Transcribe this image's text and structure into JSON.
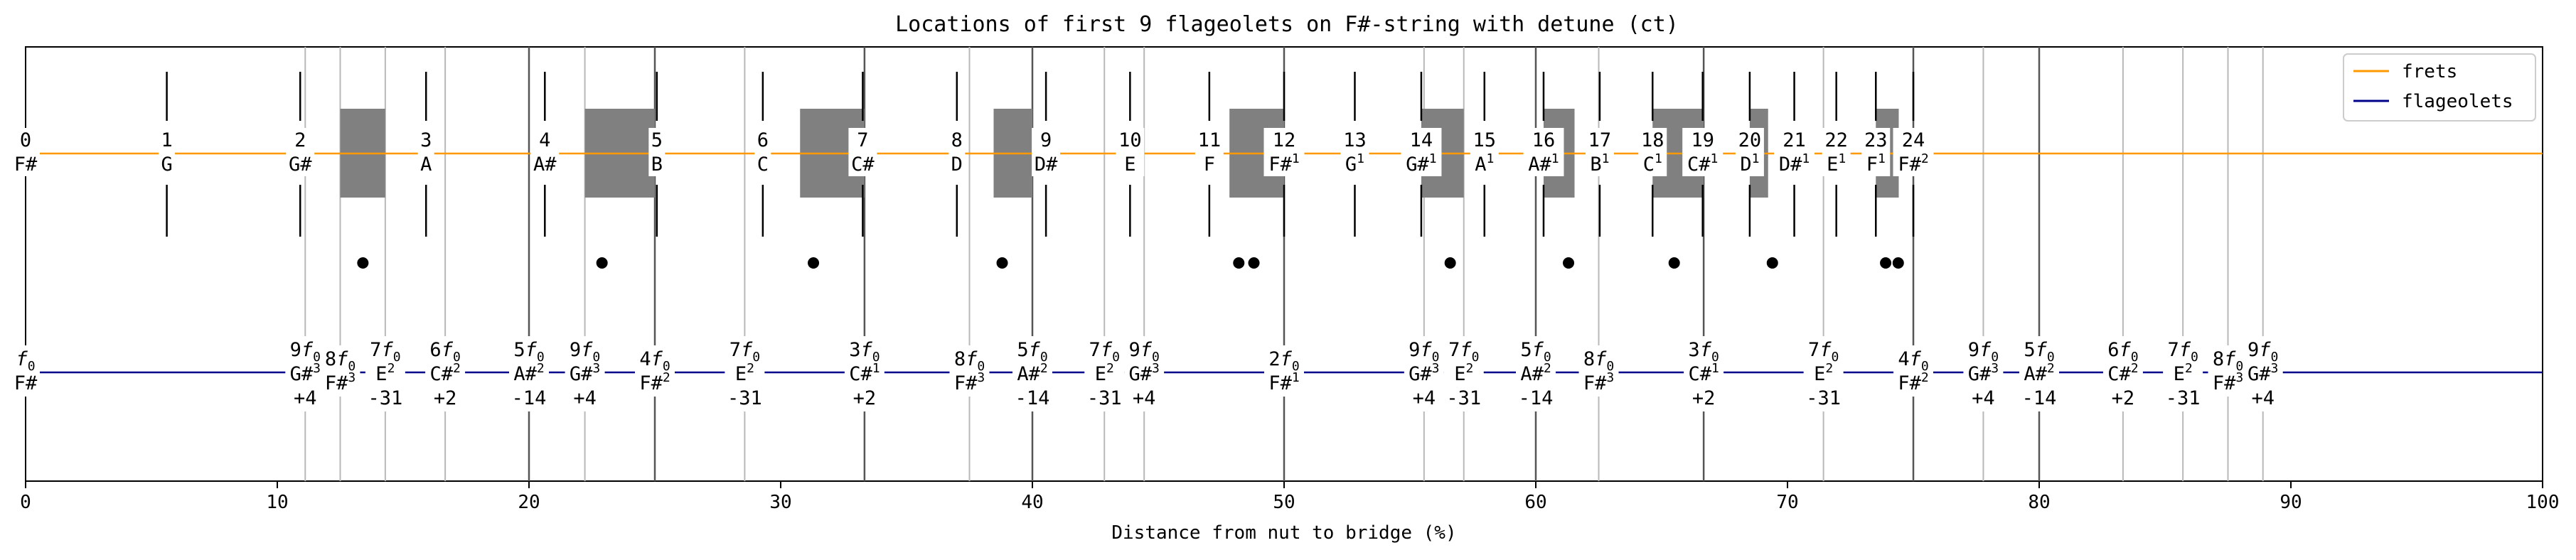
{
  "chart_data": {
    "type": "line",
    "title": "Locations of first 9 flageolets on F#-string with detune (ct)",
    "xlabel": "Distance from nut to bridge (%)",
    "ylabel": "",
    "xlim": [
      0,
      100
    ],
    "xticks": [
      "0",
      "10",
      "20",
      "30",
      "40",
      "50",
      "60",
      "70",
      "80",
      "90",
      "100"
    ],
    "grid": false,
    "legend": {
      "placement": "top-right",
      "entries": [
        {
          "name": "frets",
          "color": "#ff9900"
        },
        {
          "name": "flageolets",
          "color": "#00008b"
        }
      ]
    },
    "frets": [
      {
        "n": "0",
        "note": "F#",
        "sup": "",
        "x": 0
      },
      {
        "n": "1",
        "note": "G",
        "sup": "",
        "x": 5.61
      },
      {
        "n": "2",
        "note": "G#",
        "sup": "",
        "x": 10.91
      },
      {
        "n": "3",
        "note": "A",
        "sup": "",
        "x": 15.91
      },
      {
        "n": "4",
        "note": "A#",
        "sup": "",
        "x": 20.63
      },
      {
        "n": "5",
        "note": "B",
        "sup": "",
        "x": 25.08
      },
      {
        "n": "6",
        "note": "C",
        "sup": "",
        "x": 29.29
      },
      {
        "n": "7",
        "note": "C#",
        "sup": "",
        "x": 33.26
      },
      {
        "n": "8",
        "note": "D",
        "sup": "",
        "x": 37.0
      },
      {
        "n": "9",
        "note": "D#",
        "sup": "",
        "x": 40.54
      },
      {
        "n": "10",
        "note": "E",
        "sup": "",
        "x": 43.88
      },
      {
        "n": "11",
        "note": "F",
        "sup": "",
        "x": 47.03
      },
      {
        "n": "12",
        "note": "F#",
        "sup": "1",
        "x": 50.0
      },
      {
        "n": "13",
        "note": "G",
        "sup": "1",
        "x": 52.81
      },
      {
        "n": "14",
        "note": "G#",
        "sup": "1",
        "x": 55.45
      },
      {
        "n": "15",
        "note": "A",
        "sup": "1",
        "x": 57.96
      },
      {
        "n": "16",
        "note": "A#",
        "sup": "1",
        "x": 60.31
      },
      {
        "n": "17",
        "note": "B",
        "sup": "1",
        "x": 62.54
      },
      {
        "n": "18",
        "note": "C",
        "sup": "1",
        "x": 64.64
      },
      {
        "n": "19",
        "note": "C#",
        "sup": "1",
        "x": 66.63
      },
      {
        "n": "20",
        "note": "D",
        "sup": "1",
        "x": 68.5
      },
      {
        "n": "21",
        "note": "D#",
        "sup": "1",
        "x": 70.27
      },
      {
        "n": "22",
        "note": "E",
        "sup": "1",
        "x": 71.94
      },
      {
        "n": "23",
        "note": "F",
        "sup": "1",
        "x": 73.51
      },
      {
        "n": "24",
        "note": "F#",
        "sup": "2",
        "x": 75.0
      }
    ],
    "highlighted_intervals": [
      {
        "from": 12.5,
        "to": 14.29
      },
      {
        "from": 22.22,
        "to": 25.0
      },
      {
        "from": 30.77,
        "to": 33.33
      },
      {
        "from": 38.46,
        "to": 40.0
      },
      {
        "from": 47.83,
        "to": 50.0
      },
      {
        "from": 55.45,
        "to": 57.14
      },
      {
        "from": 60.31,
        "to": 61.54
      },
      {
        "from": 64.64,
        "to": 66.67
      },
      {
        "from": 68.5,
        "to": 69.23
      },
      {
        "from": 73.51,
        "to": 74.42
      }
    ],
    "dots": [
      13.4,
      22.9,
      31.3,
      38.8,
      48.2,
      48.8,
      56.6,
      61.3,
      65.5,
      69.4,
      73.9,
      74.4
    ],
    "flageolets": [
      {
        "harm": "f",
        "sub": "0",
        "note": "F#",
        "sup": "",
        "detune": "",
        "x": 0
      },
      {
        "harm": "9f",
        "sub": "0",
        "note": "G#",
        "sup": "3",
        "detune": "+4",
        "x": 11.11
      },
      {
        "harm": "8f",
        "sub": "0",
        "note": "F#",
        "sup": "3",
        "detune": "",
        "x": 12.5
      },
      {
        "harm": "7f",
        "sub": "0",
        "note": "E",
        "sup": "2",
        "detune": "-31",
        "x": 14.29
      },
      {
        "harm": "6f",
        "sub": "0",
        "note": "C#",
        "sup": "2",
        "detune": "+2",
        "x": 16.67
      },
      {
        "harm": "5f",
        "sub": "0",
        "note": "A#",
        "sup": "2",
        "detune": "-14",
        "x": 20.0
      },
      {
        "harm": "9f",
        "sub": "0",
        "note": "G#",
        "sup": "3",
        "detune": "+4",
        "x": 22.22
      },
      {
        "harm": "4f",
        "sub": "0",
        "note": "F#",
        "sup": "2",
        "detune": "",
        "x": 25.0
      },
      {
        "harm": "7f",
        "sub": "0",
        "note": "E",
        "sup": "2",
        "detune": "-31",
        "x": 28.57
      },
      {
        "harm": "3f",
        "sub": "0",
        "note": "C#",
        "sup": "1",
        "detune": "+2",
        "x": 33.33
      },
      {
        "harm": "8f",
        "sub": "0",
        "note": "F#",
        "sup": "3",
        "detune": "",
        "x": 37.5
      },
      {
        "harm": "5f",
        "sub": "0",
        "note": "A#",
        "sup": "2",
        "detune": "-14",
        "x": 40.0
      },
      {
        "harm": "7f",
        "sub": "0",
        "note": "E",
        "sup": "2",
        "detune": "-31",
        "x": 42.86
      },
      {
        "harm": "9f",
        "sub": "0",
        "note": "G#",
        "sup": "3",
        "detune": "+4",
        "x": 44.44
      },
      {
        "harm": "2f",
        "sub": "0",
        "note": "F#",
        "sup": "1",
        "detune": "",
        "x": 50.0
      },
      {
        "harm": "9f",
        "sub": "0",
        "note": "G#",
        "sup": "3",
        "detune": "+4",
        "x": 55.56
      },
      {
        "harm": "7f",
        "sub": "0",
        "note": "E",
        "sup": "2",
        "detune": "-31",
        "x": 57.14
      },
      {
        "harm": "5f",
        "sub": "0",
        "note": "A#",
        "sup": "2",
        "detune": "-14",
        "x": 60.0
      },
      {
        "harm": "8f",
        "sub": "0",
        "note": "F#",
        "sup": "3",
        "detune": "",
        "x": 62.5
      },
      {
        "harm": "3f",
        "sub": "0",
        "note": "C#",
        "sup": "1",
        "detune": "+2",
        "x": 66.67
      },
      {
        "harm": "7f",
        "sub": "0",
        "note": "E",
        "sup": "2",
        "detune": "-31",
        "x": 71.43
      },
      {
        "harm": "4f",
        "sub": "0",
        "note": "F#",
        "sup": "2",
        "detune": "",
        "x": 75.0
      },
      {
        "harm": "9f",
        "sub": "0",
        "note": "G#",
        "sup": "3",
        "detune": "+4",
        "x": 77.78
      },
      {
        "harm": "5f",
        "sub": "0",
        "note": "A#",
        "sup": "2",
        "detune": "-14",
        "x": 80.0
      },
      {
        "harm": "6f",
        "sub": "0",
        "note": "C#",
        "sup": "2",
        "detune": "+2",
        "x": 83.33
      },
      {
        "harm": "7f",
        "sub": "0",
        "note": "E",
        "sup": "2",
        "detune": "-31",
        "x": 85.71
      },
      {
        "harm": "8f",
        "sub": "0",
        "note": "F#",
        "sup": "3",
        "detune": "",
        "x": 87.5
      },
      {
        "harm": "9f",
        "sub": "0",
        "note": "G#",
        "sup": "3",
        "detune": "+4",
        "x": 88.89
      }
    ],
    "colors": {
      "frets_line": "#ff9900",
      "flageolets_line": "#00008b",
      "rect": "#808080",
      "dot": "#000000"
    }
  }
}
